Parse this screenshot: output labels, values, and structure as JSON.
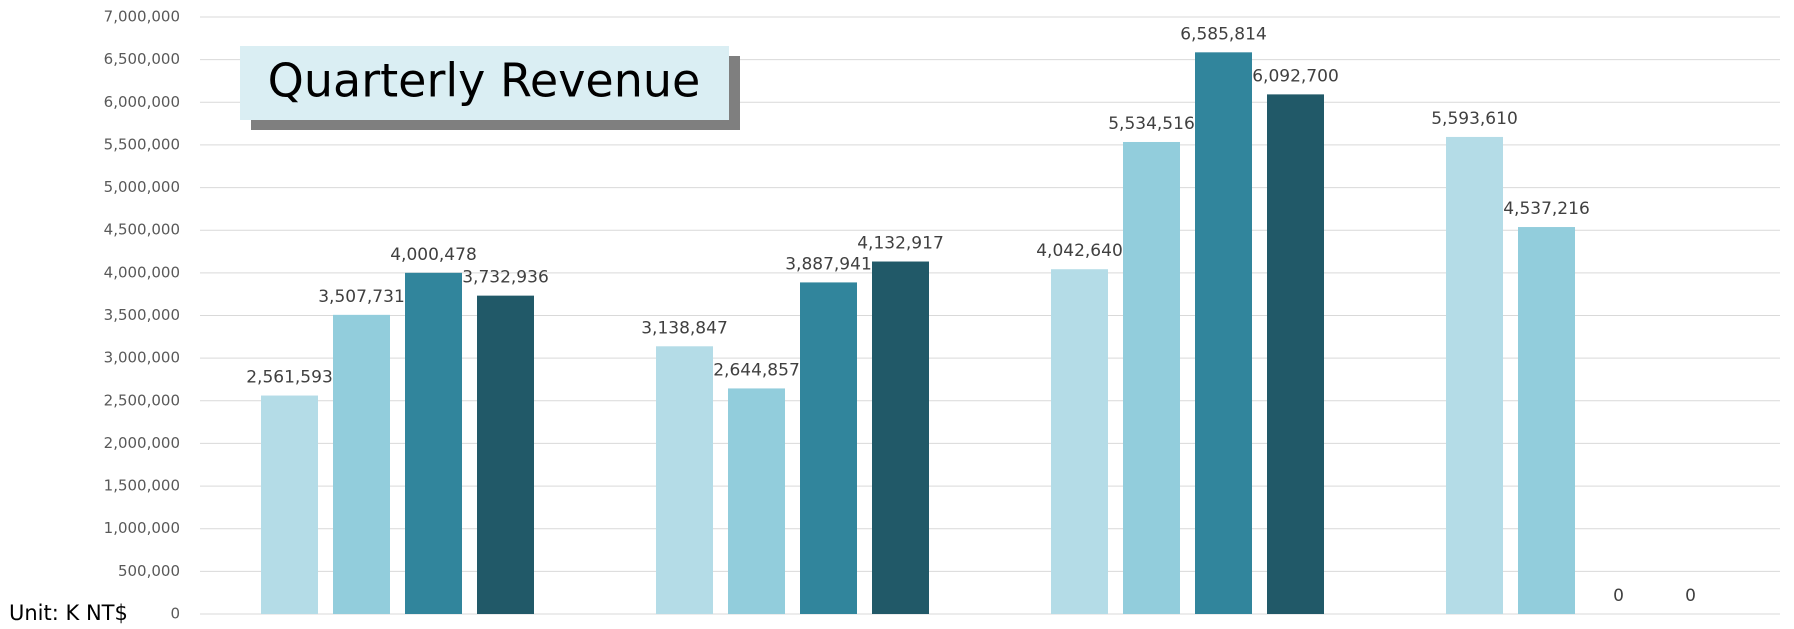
{
  "chart_data": {
    "type": "bar",
    "title": "Quarterly Revenue",
    "annotation": "Unit: K NT$",
    "categories": [
      null,
      null,
      null,
      null
    ],
    "series": [
      {
        "color": "#b4dce7",
        "values": [
          2561593,
          3138847,
          4042640,
          5593610
        ],
        "value_labels": [
          "2,561,593",
          "3,138,847",
          "4,042,640",
          "5,593,610"
        ]
      },
      {
        "color": "#92cddc",
        "values": [
          3507731,
          2644857,
          5534516,
          4537216
        ],
        "value_labels": [
          "3,507,731",
          "2,644,857",
          "5,534,516",
          "4,537,216"
        ]
      },
      {
        "color": "#31859c",
        "values": [
          4000478,
          3887941,
          6585814,
          0
        ],
        "value_labels": [
          "4,000,478",
          "3,887,941",
          "6,585,814",
          "0"
        ]
      },
      {
        "color": "#215968",
        "values": [
          3732936,
          4132917,
          6092700,
          0
        ],
        "value_labels": [
          "3,732,936",
          "4,132,917",
          "6,092,700",
          "0"
        ]
      }
    ],
    "ylim": [
      0,
      7000000
    ],
    "yticks": [
      0,
      {
        "value": 500000,
        "label": "500,000"
      },
      {
        "value": 1000000,
        "label": "1,000,000"
      },
      {
        "value": 1500000,
        "label": "1,500,000"
      },
      {
        "value": 2000000,
        "label": "2,000,000"
      },
      {
        "value": 2500000,
        "label": "2,500,000"
      },
      {
        "value": 3000000,
        "label": "3,000,000"
      },
      {
        "value": 3500000,
        "label": "3,500,000"
      },
      {
        "value": 4000000,
        "label": "4,000,000"
      },
      {
        "value": 4500000,
        "label": "4,500,000"
      },
      {
        "value": 5000000,
        "label": "5,000,000"
      },
      {
        "value": 5500000,
        "label": "5,500,000"
      },
      {
        "value": 6000000,
        "label": "6,000,000"
      },
      {
        "value": 6500000,
        "label": "6,500,000"
      },
      {
        "value": 7000000,
        "label": "7,000,000"
      }
    ],
    "grid": true
  }
}
